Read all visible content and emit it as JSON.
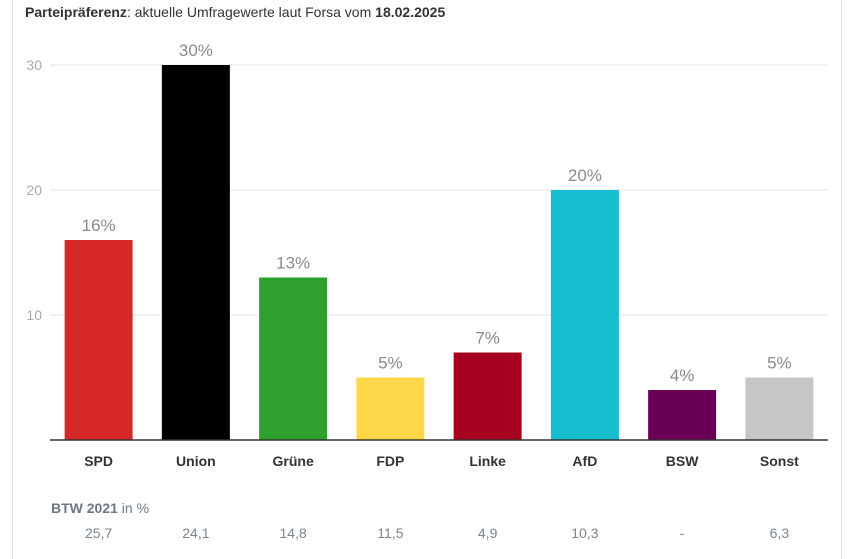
{
  "title": {
    "bold_prefix": "Parteipräferenz",
    "middle": ": aktuelle Umfragewerte laut Forsa vom ",
    "date": "18.02.2025"
  },
  "chart_data": {
    "type": "bar",
    "title": "Parteipräferenz: aktuelle Umfragewerte laut Forsa vom 18.02.2025",
    "xlabel": "",
    "ylabel": "",
    "ylim": [
      0,
      30
    ],
    "yticks": [
      10,
      20,
      30
    ],
    "grid": true,
    "categories": [
      "SPD",
      "Union",
      "Grüne",
      "FDP",
      "Linke",
      "AfD",
      "BSW",
      "Sonst"
    ],
    "values": [
      16,
      30,
      13,
      5,
      7,
      20,
      4,
      5
    ],
    "value_labels": [
      "16%",
      "30%",
      "13%",
      "5%",
      "7%",
      "20%",
      "4%",
      "5%"
    ],
    "colors": [
      "#d62828",
      "#000000",
      "#2ea02d",
      "#ffd84a",
      "#a8001f",
      "#19bdd0",
      "#6a0055",
      "#c6c6c8"
    ]
  },
  "btw": {
    "label_bold": "BTW 2021",
    "label_rest": " in %",
    "values": [
      "25,7",
      "24,1",
      "14,8",
      "11,5",
      "4,9",
      "10,3",
      "-",
      "6,3"
    ]
  }
}
